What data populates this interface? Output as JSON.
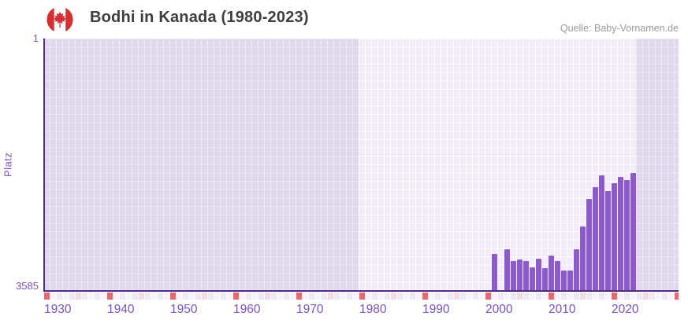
{
  "header": {
    "title": "Bodhi in Kanada (1980-2023)",
    "flag": "canada-flag-icon",
    "source": "Quelle: Baby-Vornamen.de"
  },
  "chart_data": {
    "type": "bar",
    "title": "Bodhi in Kanada (1980-2023)",
    "xlabel": "",
    "ylabel": "Platz",
    "y_axis": {
      "top_label": "1",
      "bottom_label": "3585",
      "min": 1,
      "max": 3585,
      "inverted": true,
      "gridlines": 30
    },
    "x_axis": {
      "start_year": 1930,
      "end_year": 2030,
      "tick_years": [
        1930,
        1940,
        1950,
        1960,
        1970,
        1980,
        1990,
        2000,
        2010,
        2020
      ]
    },
    "highlight_range": [
      1980,
      2023
    ],
    "legend": "none",
    "grid": true,
    "series": [
      {
        "name": "Bodhi",
        "points": [
          {
            "year": 2001,
            "rank": 3065
          },
          {
            "year": 2003,
            "rank": 3005
          },
          {
            "year": 2004,
            "rank": 3170
          },
          {
            "year": 2005,
            "rank": 3150
          },
          {
            "year": 2006,
            "rank": 3165
          },
          {
            "year": 2007,
            "rank": 3255
          },
          {
            "year": 2008,
            "rank": 3135
          },
          {
            "year": 2009,
            "rank": 3270
          },
          {
            "year": 2010,
            "rank": 3095
          },
          {
            "year": 2011,
            "rank": 3170
          },
          {
            "year": 2012,
            "rank": 3310
          },
          {
            "year": 2013,
            "rank": 3300
          },
          {
            "year": 2014,
            "rank": 3000
          },
          {
            "year": 2015,
            "rank": 2680
          },
          {
            "year": 2016,
            "rank": 2290
          },
          {
            "year": 2017,
            "rank": 2120
          },
          {
            "year": 2018,
            "rank": 1945
          },
          {
            "year": 2019,
            "rank": 2170
          },
          {
            "year": 2020,
            "rank": 2065
          },
          {
            "year": 2021,
            "rank": 1970
          },
          {
            "year": 2022,
            "rank": 2020
          },
          {
            "year": 2023,
            "rank": 1915
          }
        ]
      }
    ],
    "colors": {
      "bar": "#8B5BC7",
      "axis": "#4D2D85",
      "label": "#7B52C1",
      "title": "#3E3E3E",
      "source": "#9B9B9B",
      "plot_bg": "#F1ECF8",
      "dim_overlay": "rgba(77,45,133,0.10)",
      "strip_decade": "#E16B71",
      "strip_half_decade": "#F3DCE4",
      "strip_even": "#EDE8F5",
      "strip_odd": "#F6F3FB",
      "flag_red": "#D52F33"
    }
  }
}
